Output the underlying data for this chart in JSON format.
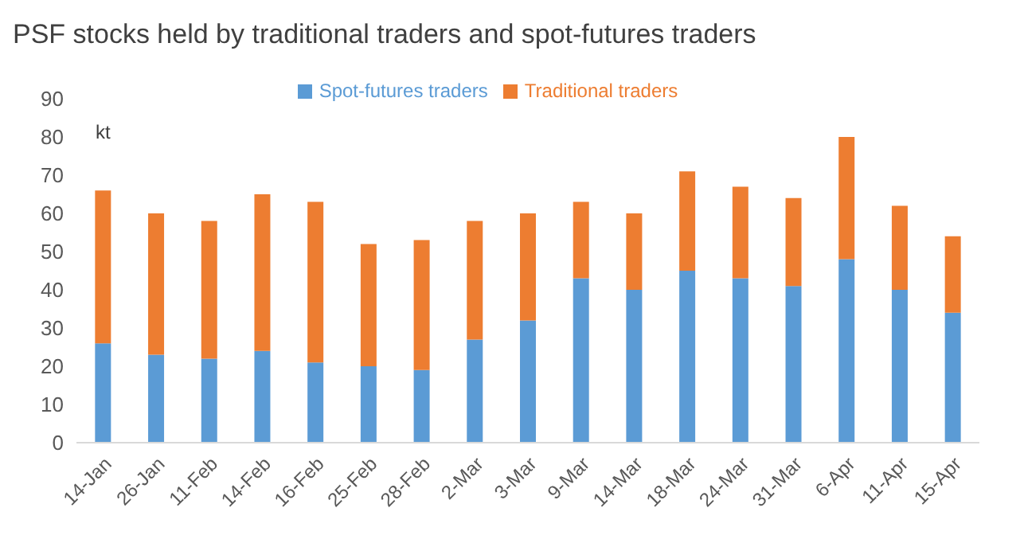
{
  "chart_data": {
    "type": "bar",
    "title": "PSF stocks held by traditional traders and spot-futures traders",
    "ylabel": "kt",
    "categories": [
      "14-Jan",
      "26-Jan",
      "11-Feb",
      "14-Feb",
      "16-Feb",
      "25-Feb",
      "28-Feb",
      "2-Mar",
      "3-Mar",
      "9-Mar",
      "14-Mar",
      "18-Mar",
      "24-Mar",
      "31-Mar",
      "6-Apr",
      "11-Apr",
      "15-Apr"
    ],
    "series": [
      {
        "name": "Spot-futures traders",
        "color": "#5b9bd5",
        "values": [
          26,
          23,
          22,
          24,
          21,
          20,
          19,
          27,
          32,
          43,
          40,
          45,
          43,
          41,
          48,
          40,
          34
        ]
      },
      {
        "name": "Traditional traders",
        "color": "#ed7d31",
        "values": [
          40,
          37,
          36,
          41,
          42,
          32,
          34,
          31,
          28,
          20,
          20,
          26,
          24,
          23,
          32,
          22,
          20
        ]
      }
    ],
    "stacked": true,
    "ylim": [
      0,
      90
    ],
    "yticks": [
      0,
      10,
      20,
      30,
      40,
      50,
      60,
      70,
      80,
      90
    ],
    "grid": false,
    "legend": "top"
  }
}
